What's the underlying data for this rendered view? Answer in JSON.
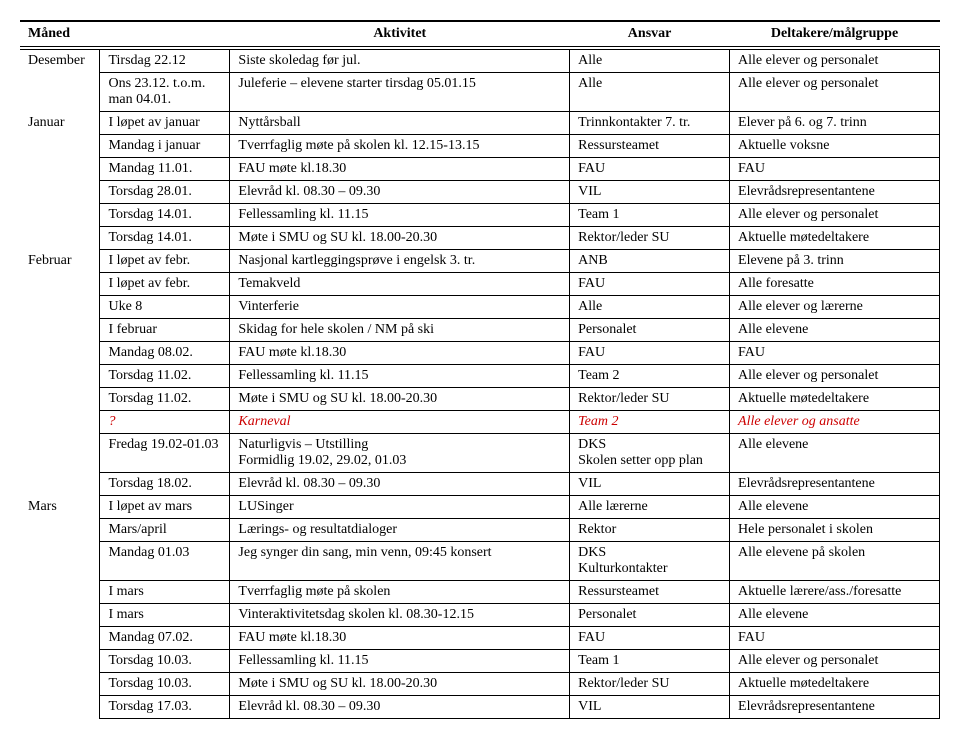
{
  "headers": [
    "Måned",
    "",
    "Aktivitet",
    "Ansvar",
    "Deltakere/målgruppe"
  ],
  "rows": [
    {
      "month": "Desember",
      "c2": "Tirsdag 22.12",
      "c3": "Siste skoledag før jul.",
      "c4": "Alle",
      "c5": "Alle elever og personalet"
    },
    {
      "month": "",
      "c2": "Ons  23.12. t.o.m. man 04.01.",
      "c3": "Juleferie – elevene starter tirsdag 05.01.15",
      "c4": "Alle",
      "c5": "Alle elever og personalet"
    },
    {
      "month": "Januar",
      "c2": "I løpet av januar",
      "c3": "Nyttårsball",
      "c4": "Trinnkontakter 7. tr.",
      "c5": "Elever på 6. og 7. trinn"
    },
    {
      "month": "",
      "c2": "Mandag i januar",
      "c3": "Tverrfaglig møte på skolen kl. 12.15-13.15",
      "c4": "Ressursteamet",
      "c5": "Aktuelle voksne"
    },
    {
      "month": "",
      "c2": "Mandag  11.01.",
      "c3": "FAU møte kl.18.30",
      "c4": "FAU",
      "c5": "FAU"
    },
    {
      "month": "",
      "c2": "Torsdag 28.01.",
      "c3": "Elevråd kl. 08.30 – 09.30",
      "c4": "VIL",
      "c5": "Elevrådsrepresentantene"
    },
    {
      "month": "",
      "c2": "Torsdag 14.01.",
      "c3": "Fellessamling kl. 11.15",
      "c4": "Team 1",
      "c5": "Alle elever og personalet"
    },
    {
      "month": "",
      "c2": "Torsdag 14.01.",
      "c3": "Møte i SMU og SU kl. 18.00-20.30",
      "c4": "Rektor/leder SU",
      "c5": "Aktuelle møtedeltakere"
    },
    {
      "month": "Februar",
      "c2": "I løpet av febr.",
      "c3": "Nasjonal kartleggingsprøve i engelsk 3. tr.",
      "c4": "ANB",
      "c5": "Elevene på 3. trinn"
    },
    {
      "month": "",
      "c2": "I løpet av febr.",
      "c3": "Temakveld",
      "c4": "FAU",
      "c5": "Alle foresatte"
    },
    {
      "month": "",
      "c2": "Uke 8",
      "c3": "Vinterferie",
      "c4": "Alle",
      "c5": "Alle elever og lærerne"
    },
    {
      "month": "",
      "c2": "I februar",
      "c3": "Skidag for hele skolen / NM på ski",
      "c4": "Personalet",
      "c5": "Alle elevene"
    },
    {
      "month": "",
      "c2": "Mandag  08.02.",
      "c3": "FAU møte kl.18.30",
      "c4": "FAU",
      "c5": "FAU"
    },
    {
      "month": "",
      "c2": "Torsdag 11.02.",
      "c3": "Fellessamling kl. 11.15",
      "c4": "Team 2",
      "c5": "Alle elever og personalet"
    },
    {
      "month": "",
      "c2": "Torsdag 11.02.",
      "c3": "Møte i SMU og SU kl. 18.00-20.30",
      "c4": "Rektor/leder SU",
      "c5": "Aktuelle møtedeltakere"
    },
    {
      "month": "",
      "c2": "?",
      "c3": "Karneval",
      "c4": "Team 2",
      "c5": "Alle elever og ansatte",
      "red": true
    },
    {
      "month": "",
      "c2": "Fredag 19.02-01.03",
      "c3": "Naturligvis – Utstilling\nFormidlig 19.02, 29.02, 01.03",
      "c4": "DKS\nSkolen setter opp plan",
      "c5": "Alle elevene"
    },
    {
      "month": "",
      "c2": "Torsdag 18.02.",
      "c3": "Elevråd kl. 08.30 – 09.30",
      "c4": "VIL",
      "c5": "Elevrådsrepresentantene"
    },
    {
      "month": "Mars",
      "c2": "I løpet av mars",
      "c3": "LUSinger",
      "c4": "Alle lærerne",
      "c5": "Alle elevene"
    },
    {
      "month": "",
      "c2": "Mars/april",
      "c3": "Lærings- og resultatdialoger",
      "c4": "Rektor",
      "c5": "Hele personalet i skolen"
    },
    {
      "month": "",
      "c2": "Mandag 01.03",
      "c3": "Jeg synger din sang, min venn, 09:45 konsert",
      "c4": "DKS\nKulturkontakter",
      "c5": "Alle elevene på skolen"
    },
    {
      "month": "",
      "c2": "I mars",
      "c3": "Tverrfaglig møte på skolen",
      "c4": "Ressursteamet",
      "c5": "Aktuelle lærere/ass./foresatte"
    },
    {
      "month": "",
      "c2": "I mars",
      "c3": "Vinteraktivitetsdag skolen kl. 08.30-12.15",
      "c4": "Personalet",
      "c5": "Alle elevene"
    },
    {
      "month": "",
      "c2": "Mandag  07.02.",
      "c3": "FAU møte kl.18.30",
      "c4": "FAU",
      "c5": "FAU"
    },
    {
      "month": "",
      "c2": "Torsdag 10.03.",
      "c3": "Fellessamling kl. 11.15",
      "c4": "Team 1",
      "c5": "Alle elever og personalet"
    },
    {
      "month": "",
      "c2": "Torsdag 10.03.",
      "c3": "Møte i SMU og SU kl. 18.00-20.30",
      "c4": "Rektor/leder SU",
      "c5": "Aktuelle møtedeltakere"
    },
    {
      "month": "",
      "c2": "Torsdag 17.03.",
      "c3": "Elevråd kl. 08.30 – 09.30",
      "c4": "VIL",
      "c5": "Elevrådsrepresentantene"
    }
  ]
}
